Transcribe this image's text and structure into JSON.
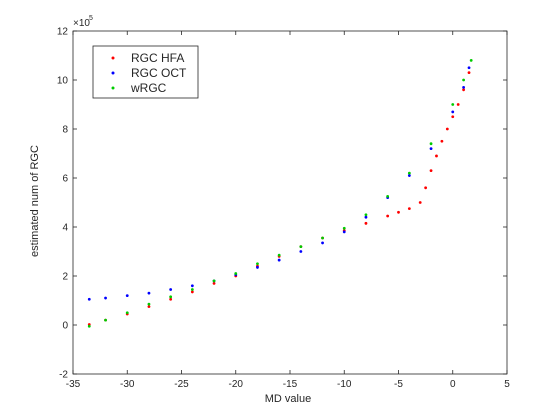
{
  "chart_data": {
    "type": "scatter",
    "xlabel": "MD value",
    "ylabel": "estimated num of RGC",
    "y_exponent_label": "×10",
    "y_exponent_power": "5",
    "xlim": [
      -35,
      5
    ],
    "ylim": [
      -2,
      12
    ],
    "x_ticks": [
      -35,
      -30,
      -25,
      -20,
      -15,
      -10,
      -5,
      0,
      5
    ],
    "y_ticks": [
      -2,
      0,
      2,
      4,
      6,
      8,
      10,
      12
    ],
    "grid": false,
    "legend_position": "top-left",
    "series": [
      {
        "name": "RGC HFA",
        "color": "#ff0000",
        "x": [
          -33.5,
          -32,
          -30,
          -28,
          -26,
          -24,
          -22,
          -20,
          -18,
          -16,
          -14,
          -12,
          -10,
          -8,
          -6,
          -5,
          -4,
          -3,
          -2.5,
          -2,
          -1.5,
          -1,
          -0.5,
          0,
          0.5,
          1,
          1.5
        ],
        "y": [
          0.02,
          0.2,
          0.45,
          0.75,
          1.05,
          1.35,
          1.7,
          2.0,
          2.4,
          2.8,
          3.2,
          3.55,
          3.85,
          4.15,
          4.45,
          4.6,
          4.75,
          5.0,
          5.6,
          6.3,
          6.9,
          7.5,
          8.0,
          8.5,
          9.0,
          9.6,
          10.3
        ]
      },
      {
        "name": "RGC OCT",
        "color": "#0000ff",
        "x": [
          -33.5,
          -32,
          -30,
          -28,
          -26,
          -24,
          -22,
          -20,
          -18,
          -16,
          -14,
          -12,
          -10,
          -8,
          -6,
          -4,
          -2,
          0,
          1,
          1.5
        ],
        "y": [
          1.05,
          1.1,
          1.2,
          1.3,
          1.45,
          1.6,
          1.8,
          2.05,
          2.35,
          2.65,
          3.0,
          3.35,
          3.8,
          4.4,
          5.2,
          6.1,
          7.2,
          8.7,
          9.7,
          10.5
        ]
      },
      {
        "name": "wRGC",
        "color": "#00cc00",
        "x": [
          -33.5,
          -32,
          -30,
          -28,
          -26,
          -24,
          -22,
          -20,
          -18,
          -16,
          -14,
          -12,
          -10,
          -8,
          -6,
          -4,
          -2,
          0,
          1,
          1.7
        ],
        "y": [
          -0.05,
          0.2,
          0.5,
          0.85,
          1.15,
          1.45,
          1.8,
          2.1,
          2.5,
          2.85,
          3.2,
          3.55,
          3.95,
          4.5,
          5.25,
          6.2,
          7.4,
          9.0,
          10.0,
          10.8
        ]
      }
    ]
  }
}
